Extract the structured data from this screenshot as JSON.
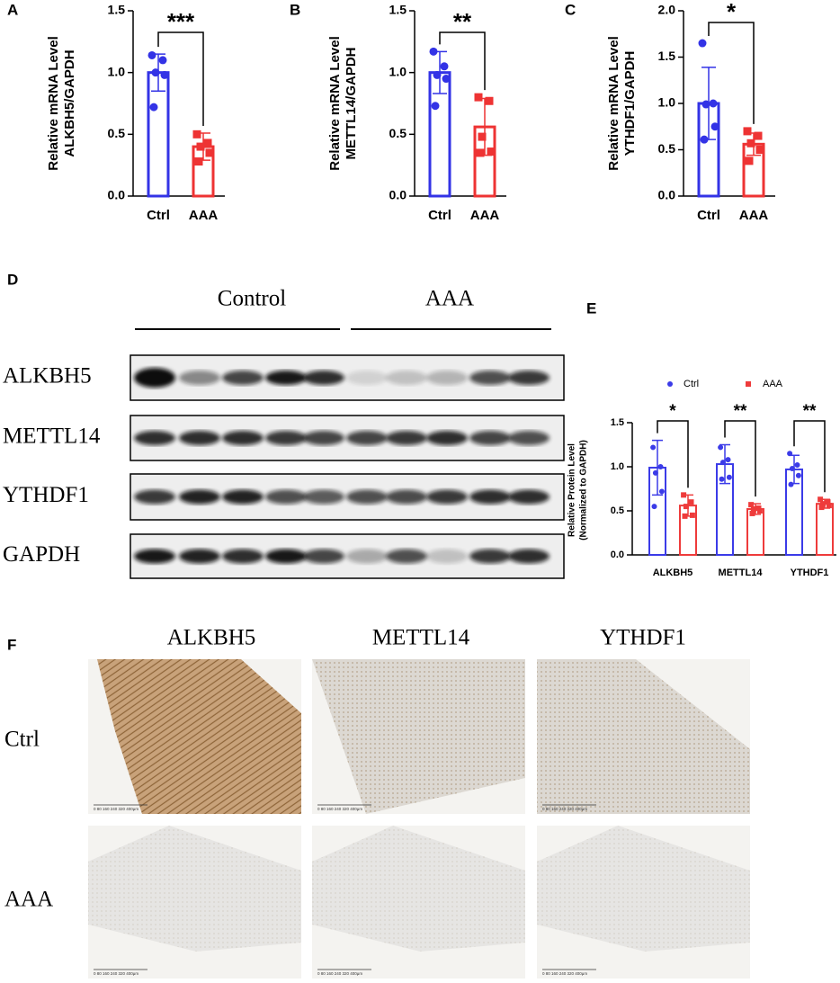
{
  "panel_labels": [
    "A",
    "B",
    "C",
    "D",
    "E",
    "F"
  ],
  "chart_data": [
    {
      "type": "bar",
      "ylabel": [
        "Relative mRNA Level",
        "ALKBH5/GAPDH"
      ],
      "categories": [
        "Ctrl",
        "AAA"
      ],
      "colors": [
        "#3333e6",
        "#ee3333"
      ],
      "values": [
        1.0,
        0.4
      ],
      "errors": [
        0.15,
        0.11
      ],
      "points": [
        [
          1.14,
          1.1,
          1.0,
          0.98,
          0.72
        ],
        [
          0.5,
          0.43,
          0.4,
          0.35,
          0.28
        ]
      ],
      "ylim": [
        0,
        1.5
      ],
      "yticks": [
        {
          "value": 0,
          "label": "0.0"
        },
        0.5,
        {
          "value": 1,
          "label": "1.0"
        },
        1.5
      ],
      "significance": "***"
    },
    {
      "type": "bar",
      "ylabel": [
        "Relative mRNA Level",
        "METTL14/GAPDH"
      ],
      "categories": [
        "Ctrl",
        "AAA"
      ],
      "colors": [
        "#3333e6",
        "#ee3333"
      ],
      "values": [
        1.0,
        0.56
      ],
      "errors": [
        0.17,
        0.23
      ],
      "points": [
        [
          1.17,
          1.05,
          0.98,
          0.95,
          0.73
        ],
        [
          0.8,
          0.77,
          0.48,
          0.36,
          0.35
        ]
      ],
      "ylim": [
        0,
        1.5
      ],
      "yticks": [
        {
          "value": 0,
          "label": "0.0"
        },
        0.5,
        {
          "value": 1,
          "label": "1.0"
        },
        1.5
      ],
      "significance": "**"
    },
    {
      "type": "bar",
      "ylabel": [
        "Relative mRNA Level",
        "YTHDF1/GAPDH"
      ],
      "categories": [
        "Ctrl",
        "AAA"
      ],
      "colors": [
        "#3333e6",
        "#ee3333"
      ],
      "values": [
        1.0,
        0.56
      ],
      "errors": [
        0.39,
        0.12
      ],
      "points": [
        [
          1.65,
          1.0,
          0.99,
          0.75,
          0.61
        ],
        [
          0.7,
          0.65,
          0.57,
          0.5,
          0.38
        ]
      ],
      "ylim": [
        0,
        2
      ],
      "yticks": [
        {
          "value": 0,
          "label": "0.0"
        },
        0.5,
        {
          "value": 1,
          "label": "1.0"
        },
        1.5,
        {
          "value": 2,
          "label": "2.0"
        }
      ],
      "significance": "*"
    },
    {
      "type": "grouped_bar",
      "ylabel": [
        "Relative Protein Level",
        "(Normalized to GAPDH)"
      ],
      "categories": [
        "ALKBH5",
        "METTL14",
        "YTHDF1"
      ],
      "series": [
        {
          "name": "Ctrl",
          "color": "#3b3be8",
          "values": [
            0.99,
            1.03,
            0.97
          ],
          "errors": [
            0.31,
            0.22,
            0.16
          ],
          "points": [
            [
              1.22,
              1.0,
              0.93,
              0.72,
              0.55
            ],
            [
              1.22,
              1.08,
              1.05,
              0.88,
              0.86
            ],
            [
              1.15,
              1.02,
              0.98,
              0.9,
              0.8
            ]
          ]
        },
        {
          "name": "AAA",
          "color": "#ee3b3b",
          "values": [
            0.56,
            0.52,
            0.58
          ],
          "errors": [
            0.12,
            0.06,
            0.05
          ],
          "points": [
            [
              0.68,
              0.6,
              0.55,
              0.45,
              0.44
            ],
            [
              0.57,
              0.53,
              0.52,
              0.5,
              0.47
            ],
            [
              0.63,
              0.6,
              0.58,
              0.56,
              0.54
            ]
          ]
        }
      ],
      "ylim": [
        0,
        1.5
      ],
      "yticks": [
        {
          "value": 0,
          "label": "0.0"
        },
        0.5,
        {
          "value": 1,
          "label": "1.0"
        },
        1.5
      ],
      "significance": [
        "*",
        "**",
        "**"
      ]
    }
  ],
  "western_blot": {
    "groups": [
      "Control",
      "AAA"
    ],
    "proteins": [
      "ALKBH5",
      "METTL14",
      "YTHDF1",
      "GAPDH"
    ]
  },
  "ihc": {
    "columns": [
      "ALKBH5",
      "METTL14",
      "YTHDF1"
    ],
    "rows": [
      "Ctrl",
      "AAA"
    ],
    "scale_bar": "0 80 160 240 320 400μm"
  }
}
